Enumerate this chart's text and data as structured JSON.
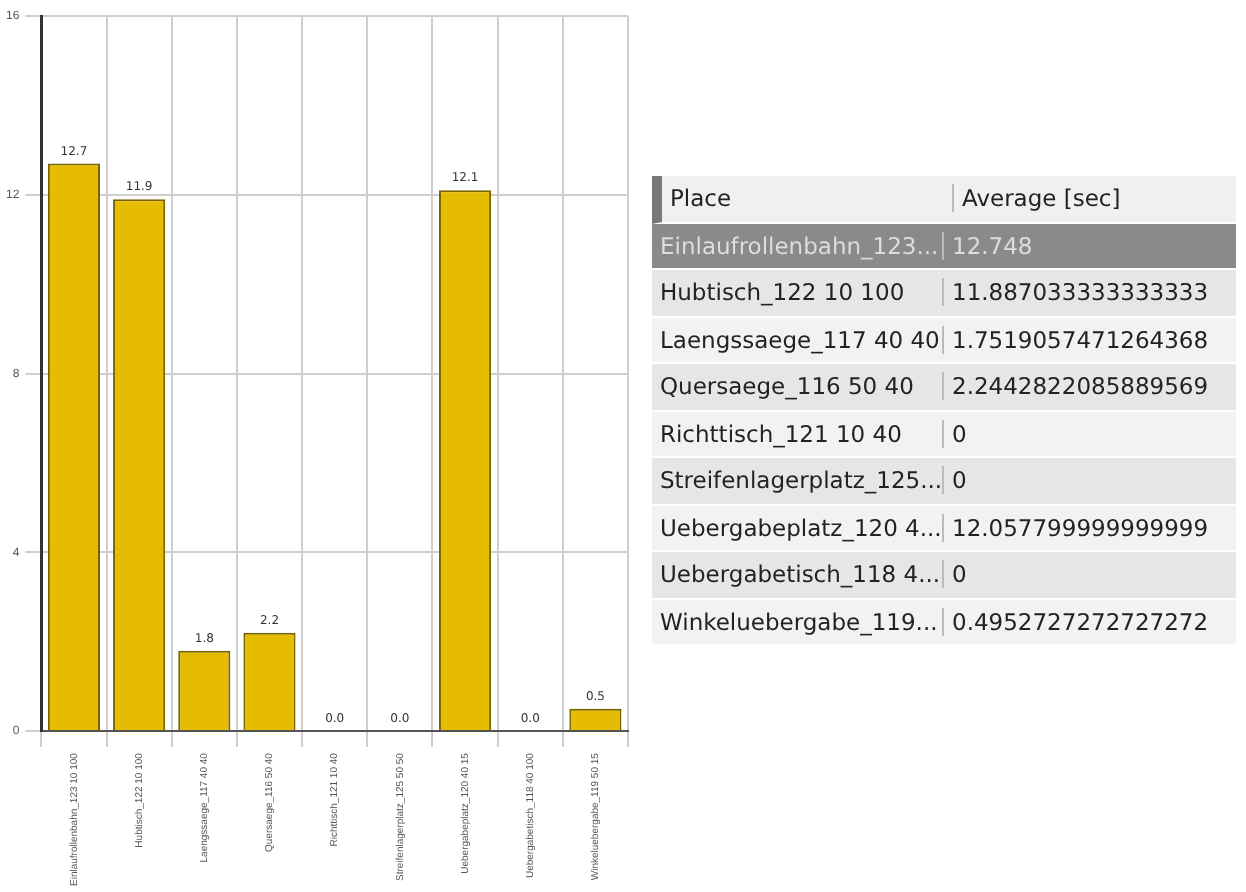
{
  "chart_data": [
    {
      "type": "bar",
      "categories": [
        "Einlaufrollenbahn_123 10 100",
        "Hubtisch_122 10 100",
        "Laengssaege_117 40 40",
        "Quersaege_116 50 40",
        "Richttisch_121 10 40",
        "Streifenlagerplatz_125 50 50",
        "Uebergabeplatz_120 40 15",
        "Uebergabetisch_118 40 100",
        "Winkeluebergabe_119 50 15"
      ],
      "values": [
        12.7,
        11.9,
        1.8,
        2.2,
        0,
        0,
        12.1,
        0,
        0.5
      ],
      "value_labels": [
        "12.7",
        "11.9",
        "1.8",
        "2.2",
        "0.0",
        "0.0",
        "12.1",
        "0.0",
        "0.5"
      ],
      "color": "#e6bc00",
      "ylim": [
        0,
        16
      ],
      "yticks": [
        0,
        4,
        8,
        12,
        16
      ],
      "grid": true,
      "legend": false
    },
    {
      "type": "other",
      "annotations": [
        "Place",
        "Average [sec]"
      ],
      "categories": [
        "Einlaufrollenbahn_123...",
        "Hubtisch_122 10 100",
        "Laengssaege_117 40 40",
        "Quersaege_116 50 40",
        "Richttisch_121 10 40",
        "Streifenlagerplatz_125...",
        "Uebergabeplatz_120 4...",
        "Uebergabetisch_118 4...",
        "Winkeluebergabe_119..."
      ],
      "value_labels": [
        "12.748",
        "11.887033333333333",
        "1.7519057471264368",
        "2.2442822085889569",
        "0",
        "0",
        "12.057799999999999",
        "0",
        "0.4952727272727272"
      ]
    }
  ]
}
